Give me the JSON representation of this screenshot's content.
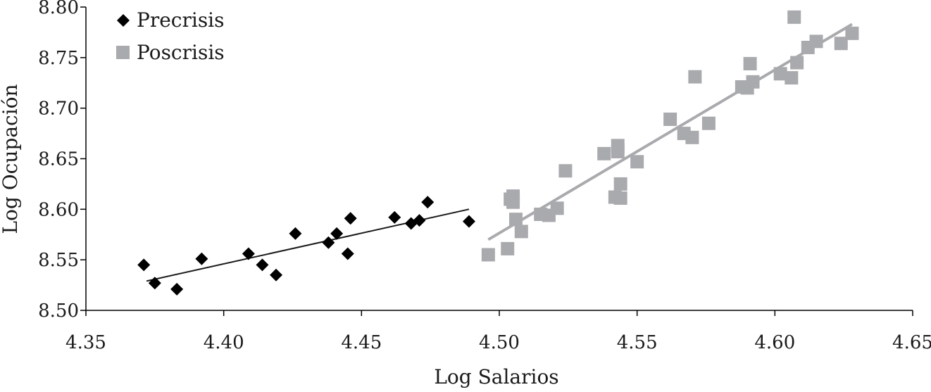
{
  "chart_data": {
    "type": "scatter",
    "title": "",
    "xlabel": "Log Salarios",
    "ylabel": "Log Ocupación",
    "xlim": [
      4.35,
      4.65
    ],
    "ylim": [
      8.5,
      8.8
    ],
    "xticks": [
      "4.35",
      "4.40",
      "4.45",
      "4.50",
      "4.55",
      "4.60",
      "4.65"
    ],
    "yticks": [
      "8.50",
      "8.55",
      "8.60",
      "8.65",
      "8.70",
      "8.75",
      "8.80"
    ],
    "grid": false,
    "legend_position": "top-left",
    "series": [
      {
        "name": "Precrisis",
        "marker": "diamond",
        "color": "#000000",
        "points": [
          [
            4.371,
            8.545
          ],
          [
            4.375,
            8.527
          ],
          [
            4.383,
            8.521
          ],
          [
            4.392,
            8.551
          ],
          [
            4.409,
            8.556
          ],
          [
            4.414,
            8.545
          ],
          [
            4.419,
            8.535
          ],
          [
            4.426,
            8.576
          ],
          [
            4.438,
            8.567
          ],
          [
            4.441,
            8.576
          ],
          [
            4.445,
            8.556
          ],
          [
            4.446,
            8.591
          ],
          [
            4.462,
            8.592
          ],
          [
            4.468,
            8.586
          ],
          [
            4.471,
            8.589
          ],
          [
            4.474,
            8.607
          ],
          [
            4.489,
            8.588
          ]
        ],
        "trendline": {
          "color": "#1a1a1a",
          "from": [
            4.372,
            8.529
          ],
          "to": [
            4.489,
            8.6
          ]
        }
      },
      {
        "name": "Poscrisis",
        "marker": "square",
        "color": "#a9aaad",
        "points": [
          [
            4.496,
            8.555
          ],
          [
            4.503,
            8.561
          ],
          [
            4.504,
            8.61
          ],
          [
            4.505,
            8.613
          ],
          [
            4.505,
            8.607
          ],
          [
            4.506,
            8.59
          ],
          [
            4.508,
            8.578
          ],
          [
            4.515,
            8.595
          ],
          [
            4.518,
            8.594
          ],
          [
            4.521,
            8.601
          ],
          [
            4.524,
            8.638
          ],
          [
            4.538,
            8.655
          ],
          [
            4.543,
            8.663
          ],
          [
            4.543,
            8.657
          ],
          [
            4.542,
            8.612
          ],
          [
            4.544,
            8.625
          ],
          [
            4.544,
            8.611
          ],
          [
            4.55,
            8.647
          ],
          [
            4.562,
            8.689
          ],
          [
            4.567,
            8.675
          ],
          [
            4.57,
            8.671
          ],
          [
            4.571,
            8.731
          ],
          [
            4.576,
            8.685
          ],
          [
            4.588,
            8.721
          ],
          [
            4.59,
            8.72
          ],
          [
            4.591,
            8.744
          ],
          [
            4.592,
            8.726
          ],
          [
            4.602,
            8.734
          ],
          [
            4.606,
            8.73
          ],
          [
            4.607,
            8.79
          ],
          [
            4.608,
            8.745
          ],
          [
            4.612,
            8.76
          ],
          [
            4.615,
            8.766
          ],
          [
            4.624,
            8.764
          ],
          [
            4.628,
            8.774
          ]
        ],
        "trendline": {
          "color": "#a9aaad",
          "from": [
            4.496,
            8.57
          ],
          "to": [
            4.628,
            8.783
          ]
        }
      }
    ]
  }
}
